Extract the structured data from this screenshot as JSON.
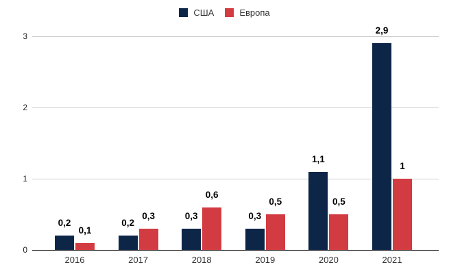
{
  "chart_data": {
    "type": "bar",
    "title": "",
    "categories": [
      "2016",
      "2017",
      "2018",
      "2019",
      "2020",
      "2021"
    ],
    "series": [
      {
        "name": "США",
        "color": "#0d2648",
        "values": [
          0.2,
          0.2,
          0.3,
          0.3,
          1.1,
          2.9
        ],
        "labels": [
          "0,2",
          "0,2",
          "0,3",
          "0,3",
          "1,1",
          "2,9"
        ]
      },
      {
        "name": "Европа",
        "color": "#d23b41",
        "values": [
          0.1,
          0.3,
          0.6,
          0.5,
          0.5,
          1.0
        ],
        "labels": [
          "0,1",
          "0,3",
          "0,6",
          "0,5",
          "0,5",
          "1"
        ]
      }
    ],
    "xlabel": "",
    "ylabel": "",
    "ylim": [
      0,
      3
    ],
    "yticks": [
      0,
      1,
      2,
      3
    ],
    "ytick_labels": [
      "0",
      "1",
      "2",
      "3"
    ],
    "grid": true,
    "legend_position": "top",
    "gridline_color": "#cccccc",
    "axis_line_color": "#1a1a1a"
  }
}
